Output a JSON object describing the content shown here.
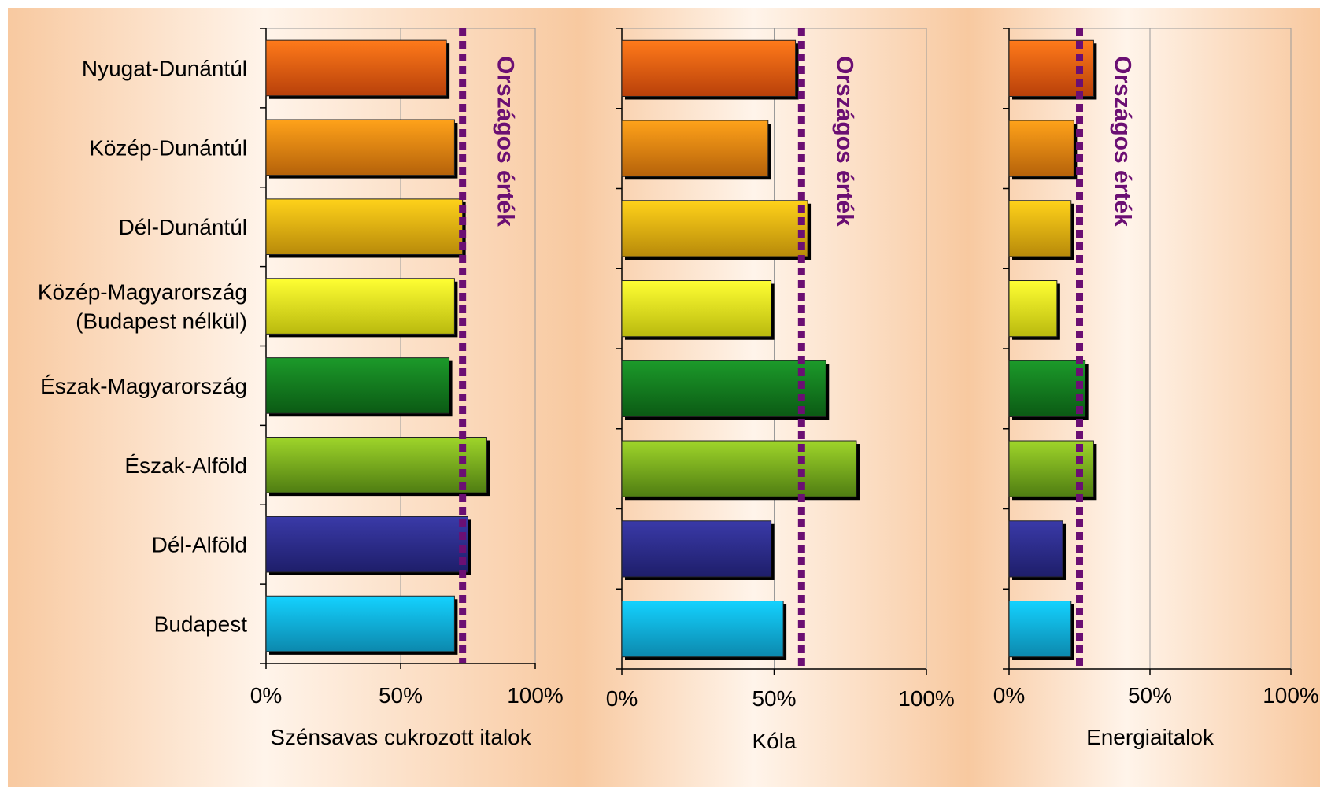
{
  "chart_data": [
    {
      "type": "bar",
      "orientation": "horizontal",
      "categories": [
        "Nyugat-Dunántúl",
        "Közép-Dunántúl",
        "Dél-Dunántúl",
        "Közép-Magyarország (Budapest nélkül)",
        "Észak-Magyarország",
        "Észak-Alföld",
        "Dél-Alföld",
        "Budapest"
      ],
      "values": [
        67,
        70,
        73,
        70,
        68,
        82,
        75,
        70
      ],
      "reference_line": {
        "value": 73,
        "label": "Országos érték"
      },
      "xlabel": "Szénsavas cukrozott italok",
      "xlim": [
        0,
        100
      ],
      "xticks": [
        "0%",
        "50%",
        "100%"
      ],
      "grid": "vertical"
    },
    {
      "type": "bar",
      "orientation": "horizontal",
      "categories": [
        "Nyugat-Dunántúl",
        "Közép-Dunántúl",
        "Dél-Dunántúl",
        "Közép-Magyarország (Budapest nélkül)",
        "Észak-Magyarország",
        "Észak-Alföld",
        "Dél-Alföld",
        "Budapest"
      ],
      "values": [
        57,
        48,
        61,
        49,
        67,
        77,
        49,
        53
      ],
      "reference_line": {
        "value": 59,
        "label": "Országos érték"
      },
      "xlabel": "Kóla",
      "xlim": [
        0,
        100
      ],
      "xticks": [
        "0%",
        "50%",
        "100%"
      ],
      "grid": "vertical"
    },
    {
      "type": "bar",
      "orientation": "horizontal",
      "categories": [
        "Nyugat-Dunántúl",
        "Közép-Dunántúl",
        "Dél-Dunántúl",
        "Közép-Magyarország (Budapest nélkül)",
        "Észak-Magyarország",
        "Észak-Alföld",
        "Dél-Alföld",
        "Budapest"
      ],
      "values": [
        30,
        23,
        22,
        17,
        27,
        30,
        19,
        22
      ],
      "reference_line": {
        "value": 25,
        "label": "Országos érték"
      },
      "xlabel": "Energiaitalok",
      "xlim": [
        0,
        100
      ],
      "xticks": [
        "0%",
        "50%",
        "100%"
      ],
      "grid": "vertical"
    }
  ],
  "category_labels": [
    [
      "Nyugat-Dunántúl"
    ],
    [
      "Közép-Dunántúl"
    ],
    [
      "Dél-Dunántúl"
    ],
    [
      "Közép-Magyarország",
      "(Budapest nélkül)"
    ],
    [
      "Észak-Magyarország"
    ],
    [
      "Észak-Alföld"
    ],
    [
      "Dél-Alföld"
    ],
    [
      "Budapest"
    ]
  ],
  "bar_colors": [
    [
      "#ff7a1a",
      "#b8400a"
    ],
    [
      "#ffa21a",
      "#b5620a"
    ],
    [
      "#ffd21a",
      "#b88a0a"
    ],
    [
      "#ffff33",
      "#b9b90e"
    ],
    [
      "#1c9a2a",
      "#0b5a14"
    ],
    [
      "#9fd52a",
      "#4f7d12"
    ],
    [
      "#3a3aa8",
      "#1e1e6a"
    ],
    [
      "#14d2ff",
      "#0c88ad"
    ]
  ],
  "colors": {
    "reference_line": "#6b0f73",
    "panel_background_edge": "#f8c9a0",
    "grid": "#9a9a9a"
  }
}
